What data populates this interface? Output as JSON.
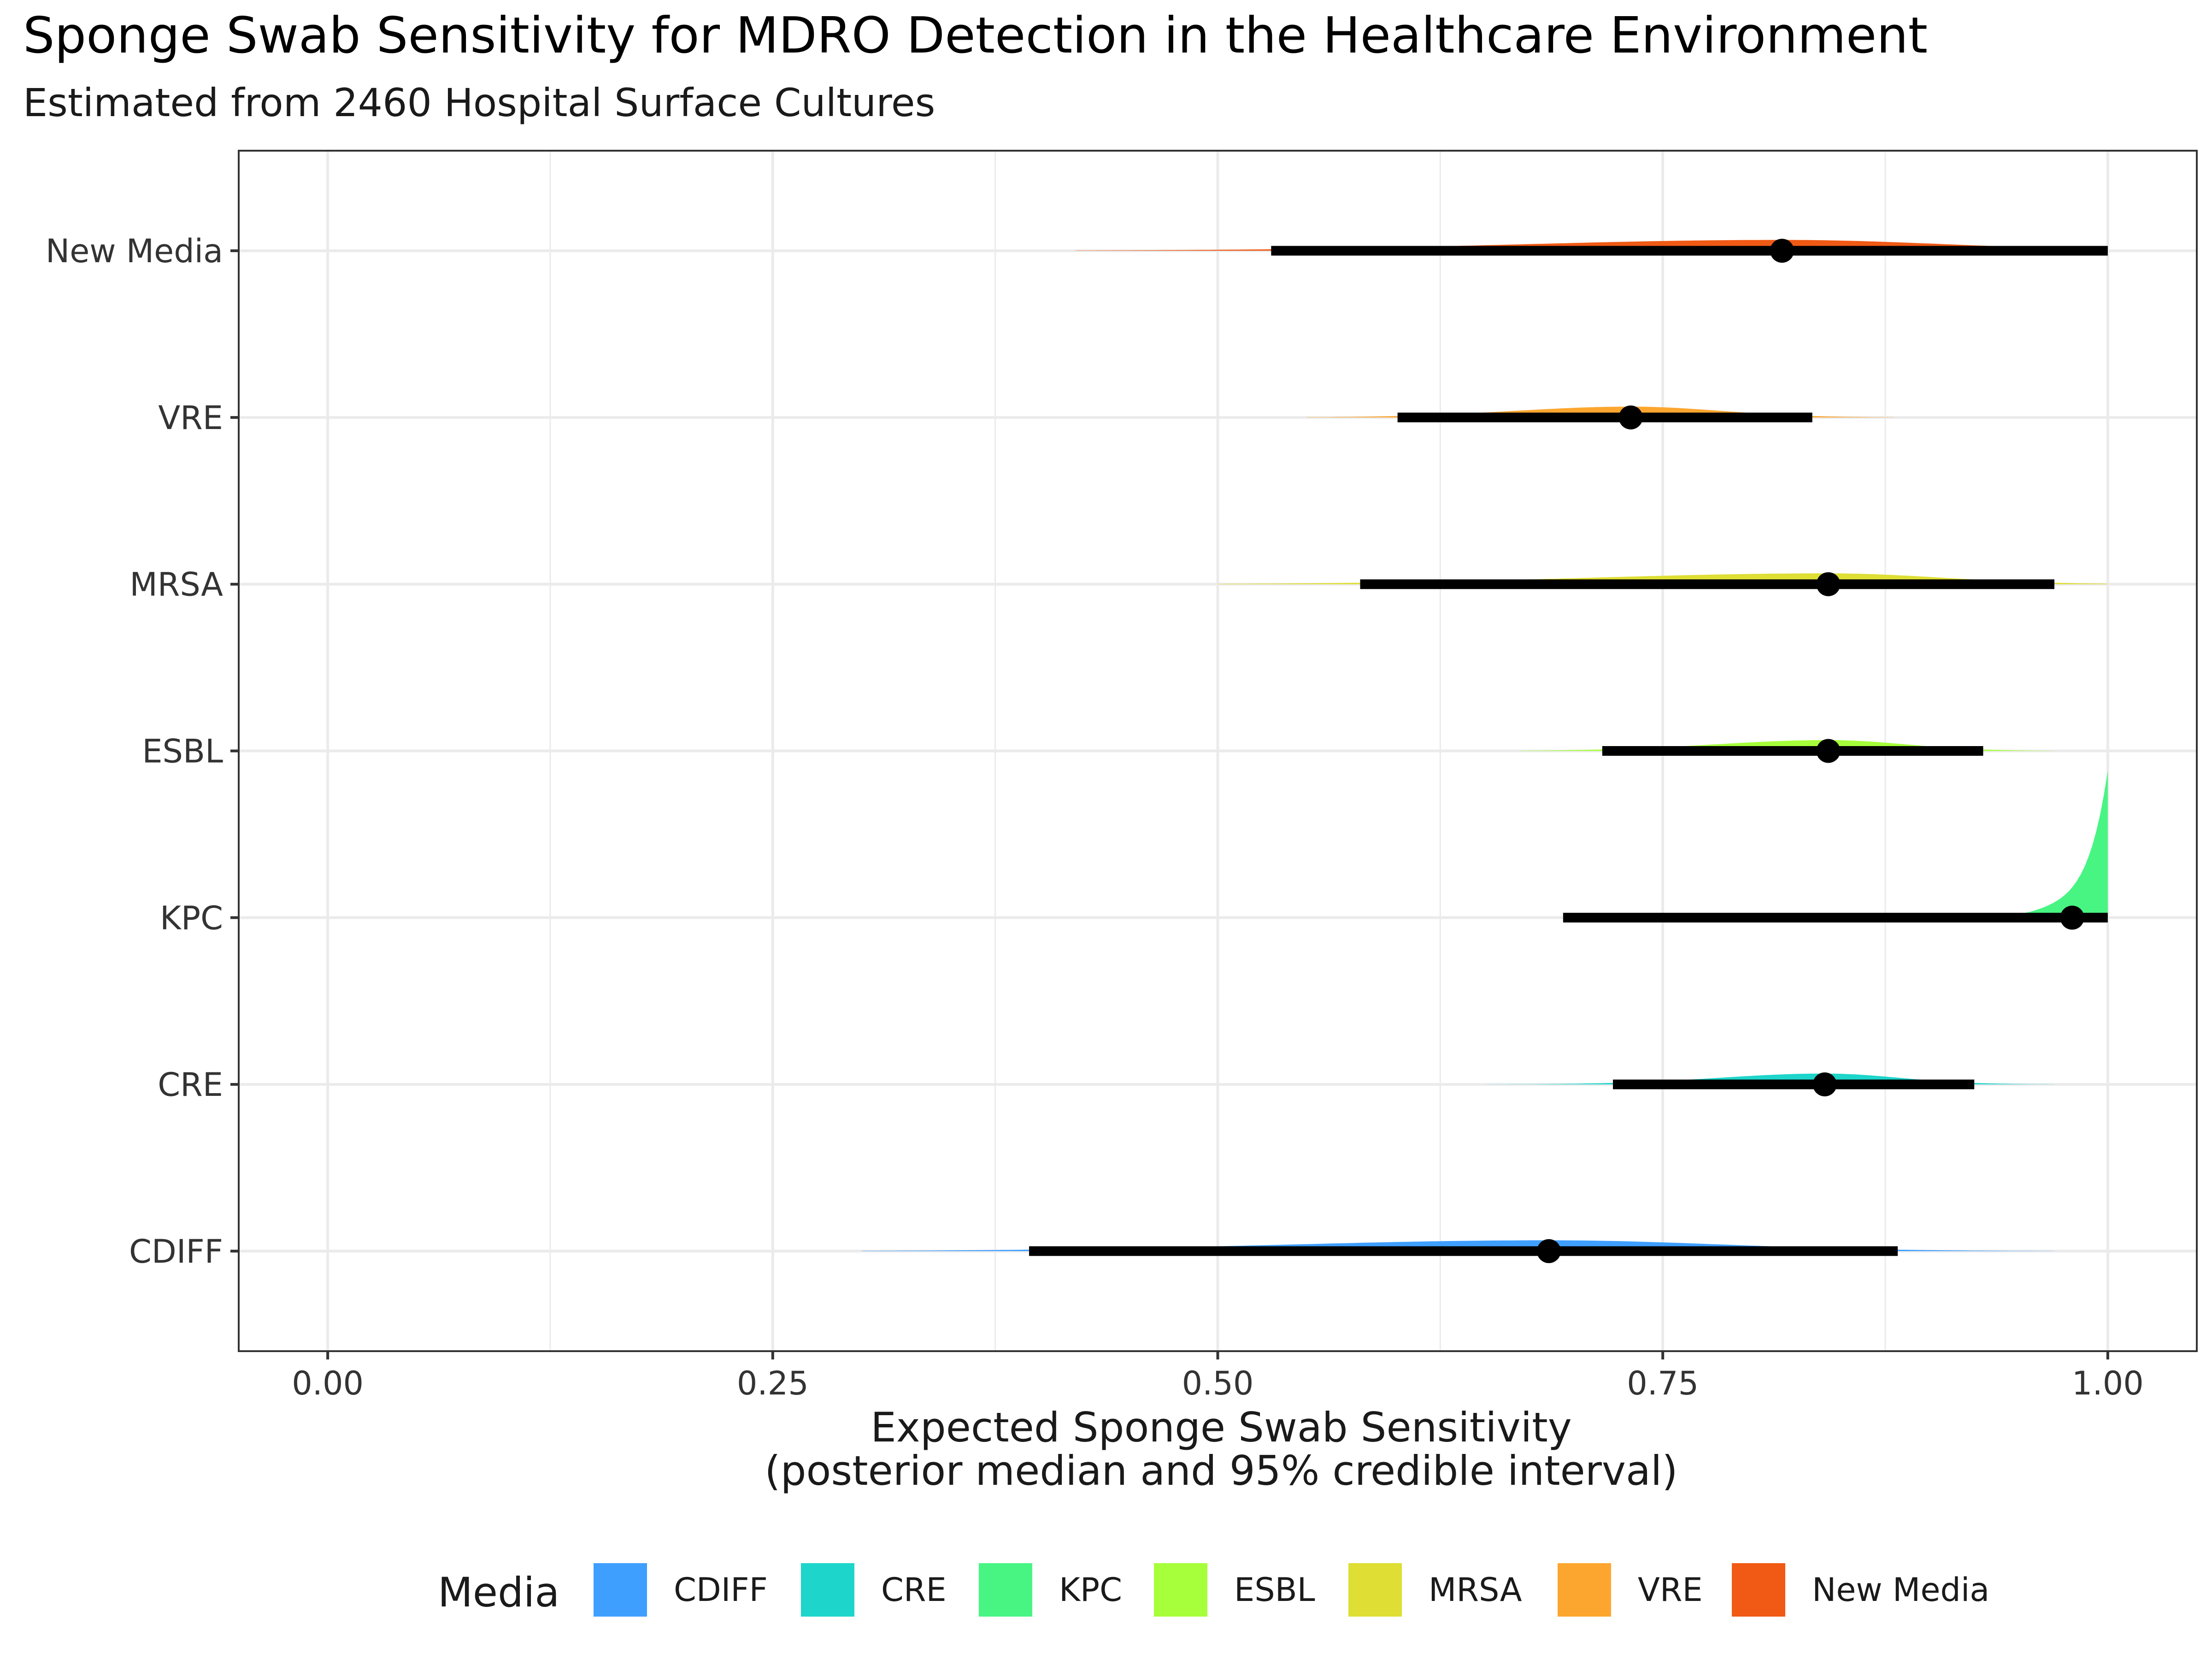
{
  "chart_data": {
    "type": "interval",
    "title": "Sponge Swab Sensitivity for MDRO Detection in the Healthcare Environment",
    "subtitle": "Estimated from 2460 Hospital Surface Cultures",
    "xlabel_line1": "Expected Sponge Swab Sensitivity",
    "xlabel_line2": "(posterior median and 95% credible interval)",
    "xlim": [
      -0.05,
      1.05
    ],
    "x_ticks": [
      0.0,
      0.25,
      0.5,
      0.75,
      1.0
    ],
    "x_tick_labels": [
      "0.00",
      "0.25",
      "0.50",
      "0.75",
      "1.00"
    ],
    "categories": [
      "CDIFF",
      "CRE",
      "KPC",
      "ESBL",
      "MRSA",
      "VRE",
      "New Media"
    ],
    "median": [
      0.686,
      0.841,
      0.98,
      0.843,
      0.843,
      0.732,
      0.817
    ],
    "lower": [
      0.394,
      0.722,
      0.694,
      0.716,
      0.58,
      0.601,
      0.53
    ],
    "upper": [
      0.882,
      0.925,
      1.0,
      0.93,
      0.97,
      0.834,
      1.0
    ],
    "density_range": [
      [
        0.3,
        0.97
      ],
      [
        0.65,
        0.97
      ],
      [
        0.65,
        1.0
      ],
      [
        0.67,
        0.97
      ],
      [
        0.5,
        1.0
      ],
      [
        0.55,
        0.88
      ],
      [
        0.42,
        1.0
      ]
    ],
    "legend_title": "Media",
    "legend": [
      "CDIFF",
      "CRE",
      "KPC",
      "ESBL",
      "MRSA",
      "VRE",
      "New Media"
    ],
    "colors": [
      "#3F9FFF",
      "#1DD5CA",
      "#48F583",
      "#A6FF3A",
      "#DEDE35",
      "#FCA630",
      "#F05A15"
    ],
    "grid": true,
    "legend_position": "bottom"
  }
}
